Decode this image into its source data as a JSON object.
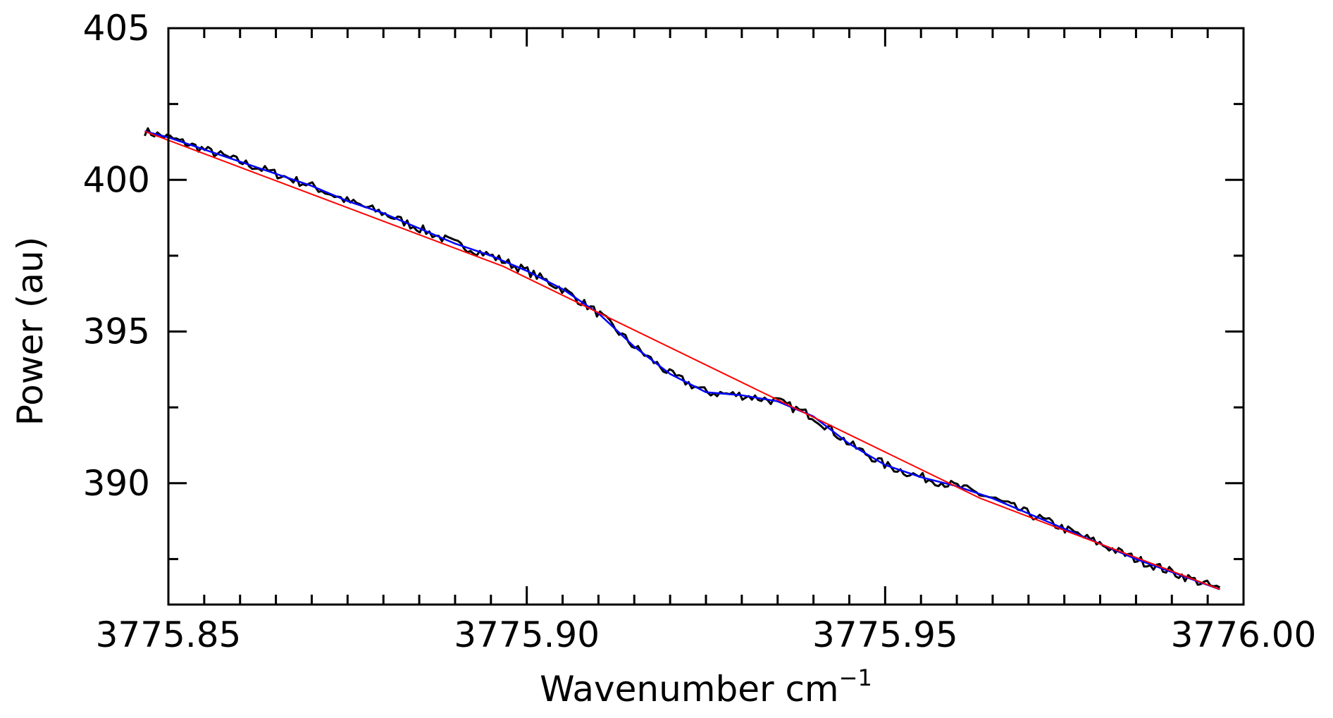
{
  "chart_data": {
    "type": "line",
    "title": "",
    "xlabel": "Wavenumber cm",
    "xlabel_superscript": "−1",
    "ylabel": "Power (au)",
    "xlim": [
      3775.85,
      3776.0
    ],
    "ylim": [
      386,
      405
    ],
    "x_major_ticks": [
      3775.85,
      3775.9,
      3775.95,
      3776.0
    ],
    "x_tick_labels": [
      "3775.85",
      "3775.90",
      "3775.95",
      "3776.00"
    ],
    "x_minor_step": 0.005,
    "y_major_ticks": [
      390,
      395,
      400,
      405
    ],
    "y_tick_labels": [
      "390",
      "395",
      "400",
      "405"
    ],
    "y_minor_step": 2.5,
    "grid": false,
    "legend": "none",
    "series": [
      {
        "color": "#000000",
        "style": "noisy measurement",
        "x": [
          3775.8467,
          3775.85,
          3775.855,
          3775.86,
          3775.865,
          3775.87,
          3775.875,
          3775.88,
          3775.885,
          3775.89,
          3775.895,
          3775.9,
          3775.905,
          3775.91,
          3775.915,
          3775.92,
          3775.925,
          3775.93,
          3775.935,
          3775.94,
          3775.945,
          3775.95,
          3775.955,
          3775.96,
          3775.965,
          3775.97,
          3775.975,
          3775.98,
          3775.985,
          3775.9967
        ],
        "y": [
          401.6,
          401.4,
          401.0,
          400.6,
          400.2,
          399.8,
          399.3,
          398.9,
          398.4,
          397.9,
          397.5,
          397.0,
          396.4,
          395.6,
          394.5,
          393.6,
          393.0,
          392.9,
          392.7,
          392.2,
          391.3,
          390.6,
          390.2,
          389.9,
          389.5,
          389.0,
          388.5,
          388.0,
          387.5,
          386.5
        ],
        "noise_amplitude": 0.15
      },
      {
        "color": "#0000ff",
        "style": "smoothed fit",
        "x": [
          3775.8467,
          3775.85,
          3775.855,
          3775.86,
          3775.865,
          3775.87,
          3775.875,
          3775.88,
          3775.885,
          3775.89,
          3775.895,
          3775.9,
          3775.905,
          3775.91,
          3775.915,
          3775.92,
          3775.925,
          3775.93,
          3775.935,
          3775.94,
          3775.945,
          3775.95,
          3775.955,
          3775.96,
          3775.965,
          3775.97,
          3775.975,
          3775.98,
          3775.985,
          3775.9967
        ],
        "y": [
          401.6,
          401.4,
          401.0,
          400.6,
          400.2,
          399.8,
          399.3,
          398.9,
          398.4,
          397.9,
          397.5,
          397.0,
          396.4,
          395.6,
          394.5,
          393.6,
          393.0,
          392.9,
          392.7,
          392.2,
          391.3,
          390.6,
          390.2,
          389.9,
          389.5,
          389.0,
          388.5,
          388.0,
          387.5,
          386.5
        ]
      },
      {
        "color": "#ff0000",
        "style": "baseline",
        "x": [
          3775.8467,
          3775.8967,
          3775.9633,
          3775.9967
        ],
        "y": [
          401.6,
          397.15,
          389.5,
          386.5
        ]
      }
    ]
  }
}
